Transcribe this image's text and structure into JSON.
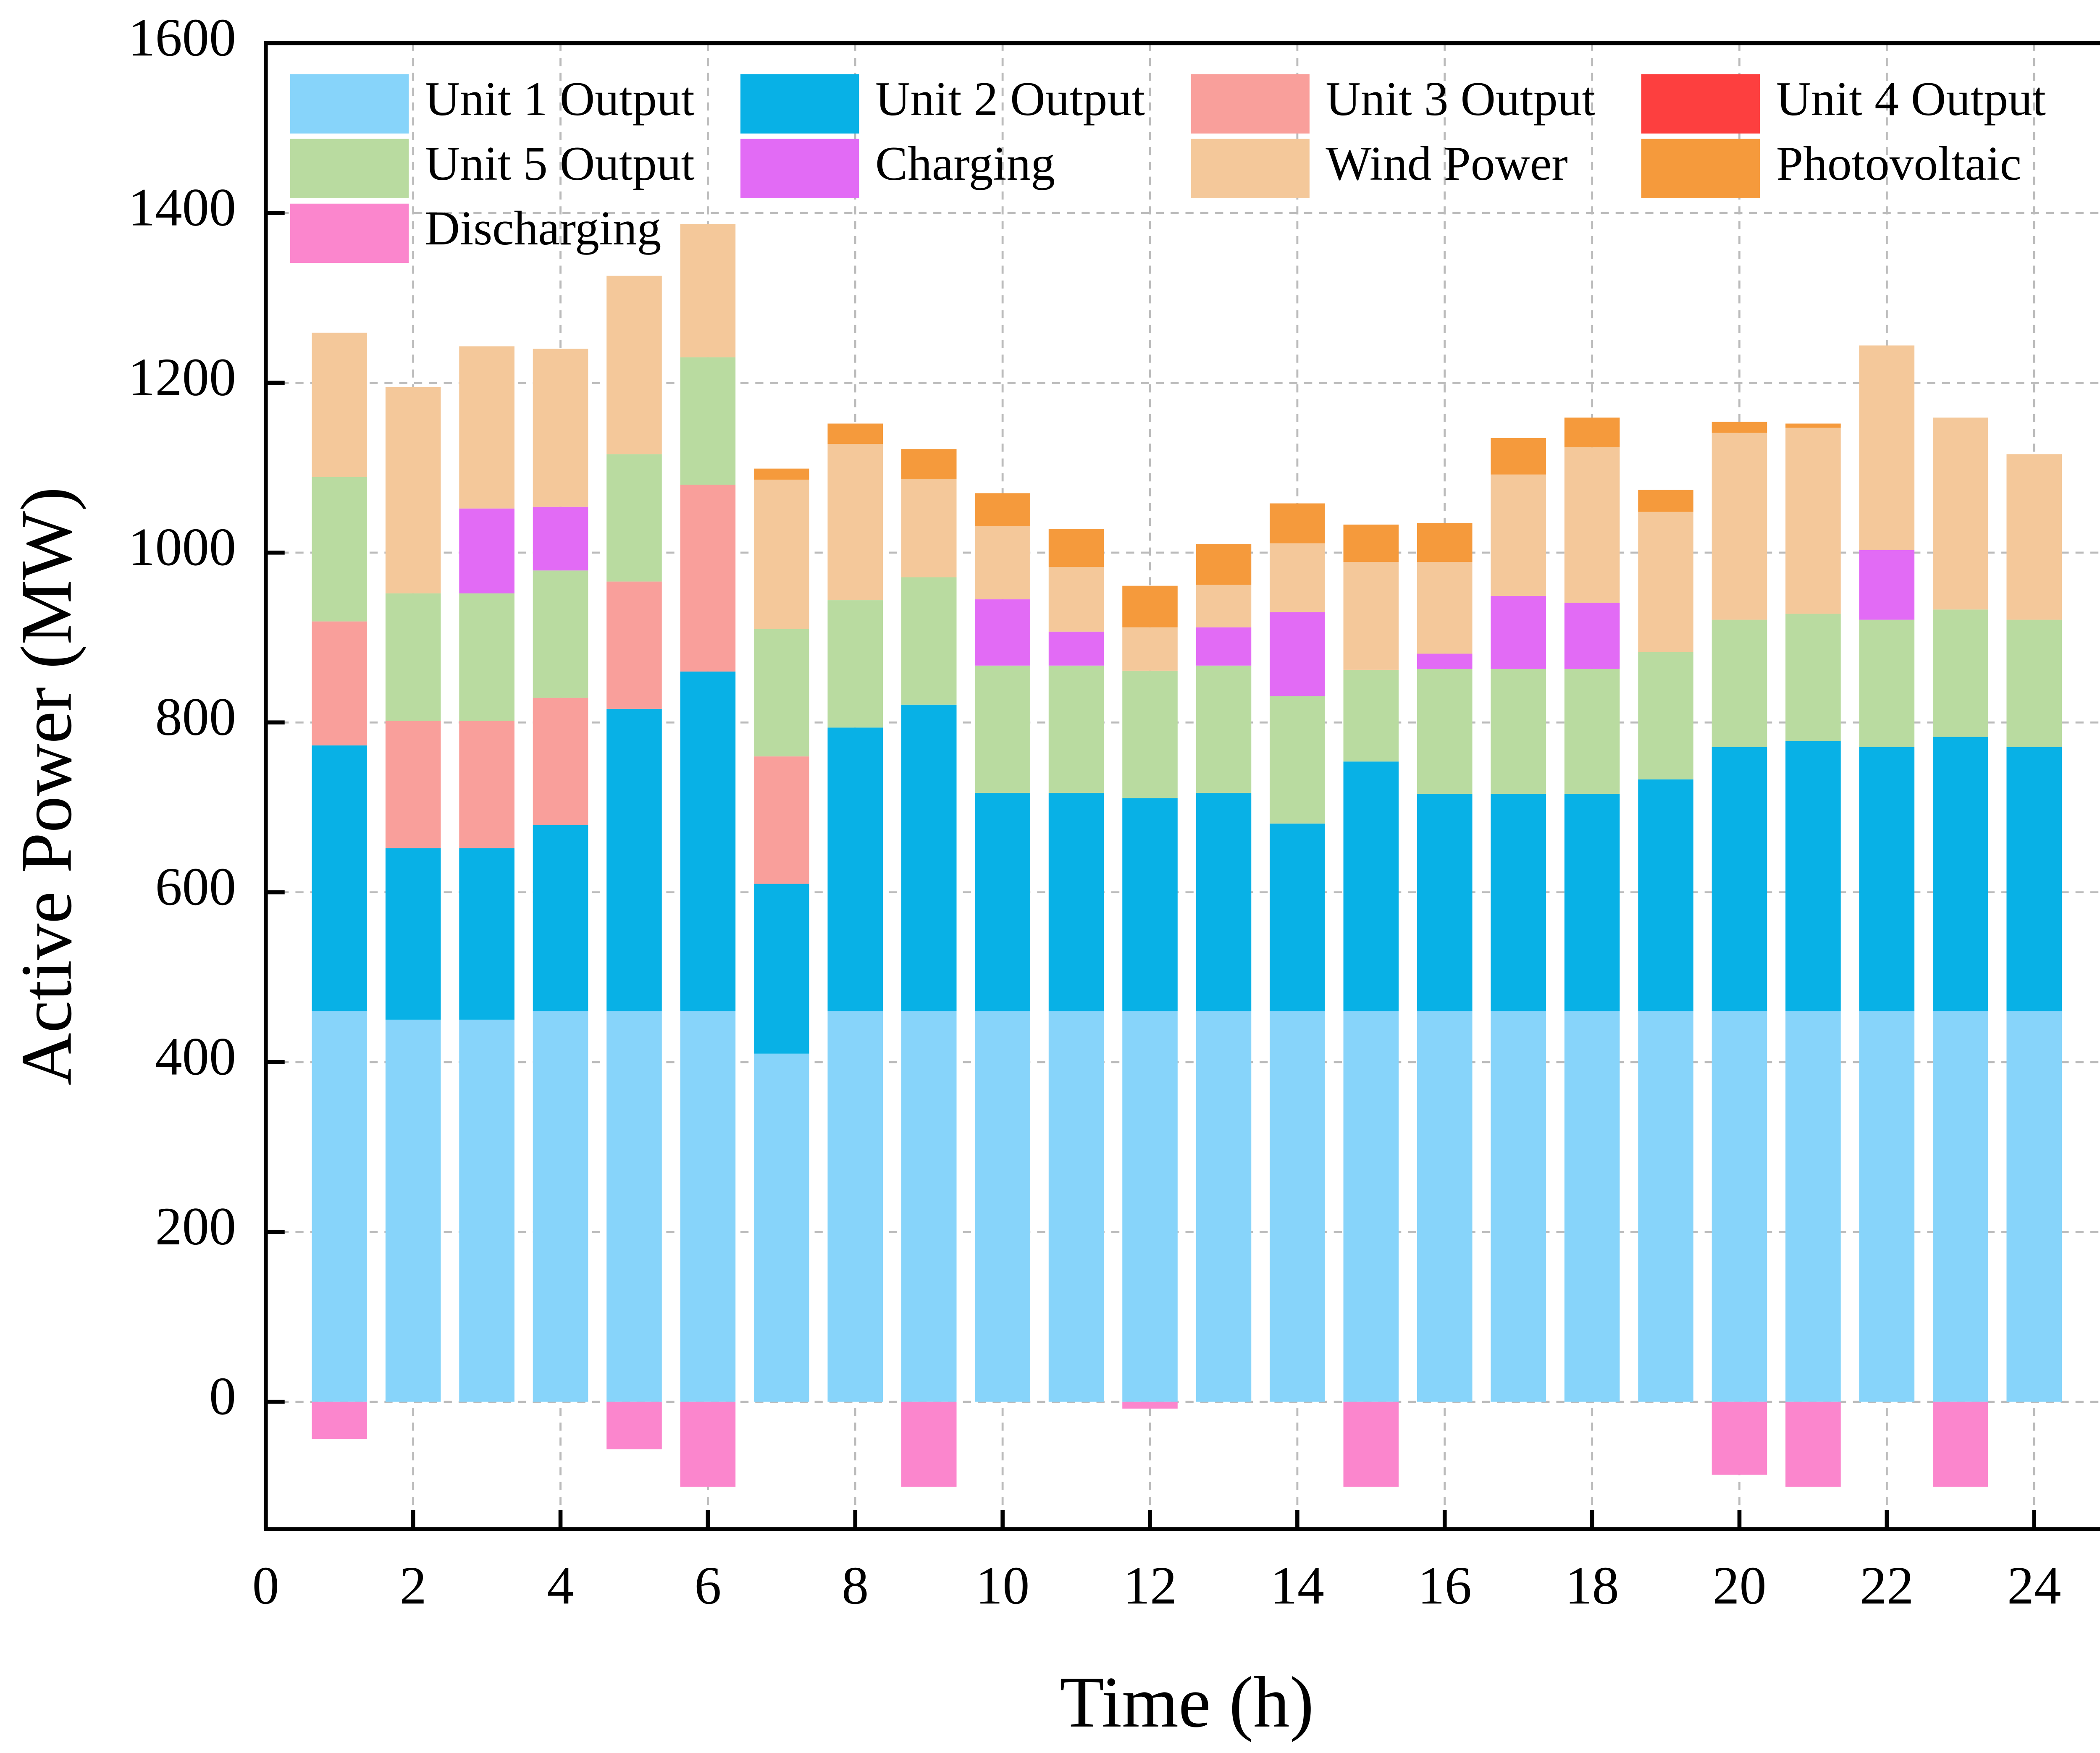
{
  "chart_data": {
    "type": "stacked_bar",
    "xlabel": "Time (h)",
    "ylabel": "Active Power (MW)",
    "x": [
      1,
      2,
      3,
      4,
      5,
      6,
      7,
      8,
      9,
      10,
      11,
      12,
      13,
      14,
      15,
      16,
      17,
      18,
      19,
      20,
      21,
      22,
      23,
      24
    ],
    "xlim": [
      0,
      25
    ],
    "xticks": [
      0,
      2,
      4,
      6,
      8,
      10,
      12,
      14,
      16,
      18,
      20,
      22,
      24
    ],
    "ylim": [
      -150,
      1600
    ],
    "yticks": [
      0,
      200,
      400,
      600,
      800,
      1000,
      1200,
      1400,
      1600
    ],
    "grid": true,
    "legend": "upper left",
    "series": [
      {
        "name": "Unit 1 Output",
        "color": "#87d4fa",
        "values": [
          460,
          450,
          450,
          460,
          460,
          460,
          410,
          460,
          460,
          460,
          460,
          460,
          460,
          460,
          460,
          460,
          460,
          460,
          460,
          460,
          460,
          460,
          460,
          460
        ]
      },
      {
        "name": "Unit 2 Output",
        "color": "#08b1e6",
        "values": [
          313,
          202,
          202,
          219,
          356,
          400,
          200,
          334,
          361,
          257,
          257,
          251,
          257,
          221,
          294,
          256,
          256,
          256,
          273,
          311,
          318,
          311,
          323,
          311
        ]
      },
      {
        "name": "Unit 3 Output",
        "color": "#f99f9b",
        "values": [
          146,
          150,
          150,
          150,
          150,
          220,
          150,
          0,
          0,
          0,
          0,
          0,
          0,
          0,
          0,
          0,
          0,
          0,
          0,
          0,
          0,
          0,
          0,
          0
        ]
      },
      {
        "name": "Unit 4 Output",
        "color": "#fd3f3f",
        "values": [
          0,
          0,
          0,
          0,
          0,
          0,
          0,
          0,
          0,
          0,
          0,
          0,
          0,
          0,
          0,
          0,
          0,
          0,
          0,
          0,
          0,
          0,
          0,
          0
        ]
      },
      {
        "name": "Unit 5 Output",
        "color": "#b9dba0",
        "values": [
          170,
          150,
          150,
          150,
          150,
          150,
          150,
          150,
          150,
          150,
          150,
          150,
          150,
          150,
          108,
          147,
          147,
          147,
          150,
          150,
          150,
          150,
          150,
          150
        ]
      },
      {
        "name": "Charging",
        "color": "#e26bf5",
        "values": [
          0,
          0,
          100,
          75,
          0,
          0,
          0,
          0,
          0,
          78,
          40,
          0,
          45,
          99,
          0,
          18,
          86,
          78,
          0,
          0,
          0,
          82,
          0,
          0
        ]
      },
      {
        "name": "Wind Power",
        "color": "#f4c89a",
        "values": [
          170,
          243,
          191,
          186,
          210,
          157,
          176,
          184,
          116,
          86,
          76,
          51,
          50,
          81,
          127,
          108,
          143,
          183,
          165,
          220,
          219,
          241,
          226,
          195
        ]
      },
      {
        "name": "Photovoltaic",
        "color": "#f59a3c",
        "values": [
          0,
          0,
          0,
          0,
          0,
          0,
          13,
          24,
          35,
          39,
          45,
          49,
          48,
          47,
          44,
          46,
          43,
          35,
          26,
          13,
          5,
          0,
          0,
          0
        ]
      },
      {
        "name": "Discharging",
        "color": "#fb86cd",
        "values": [
          -44,
          0,
          0,
          0,
          -56,
          -100,
          0,
          0,
          -100,
          0,
          0,
          -8,
          0,
          0,
          -100,
          0,
          0,
          0,
          0,
          -86,
          -100,
          0,
          -100,
          0
        ]
      }
    ]
  }
}
